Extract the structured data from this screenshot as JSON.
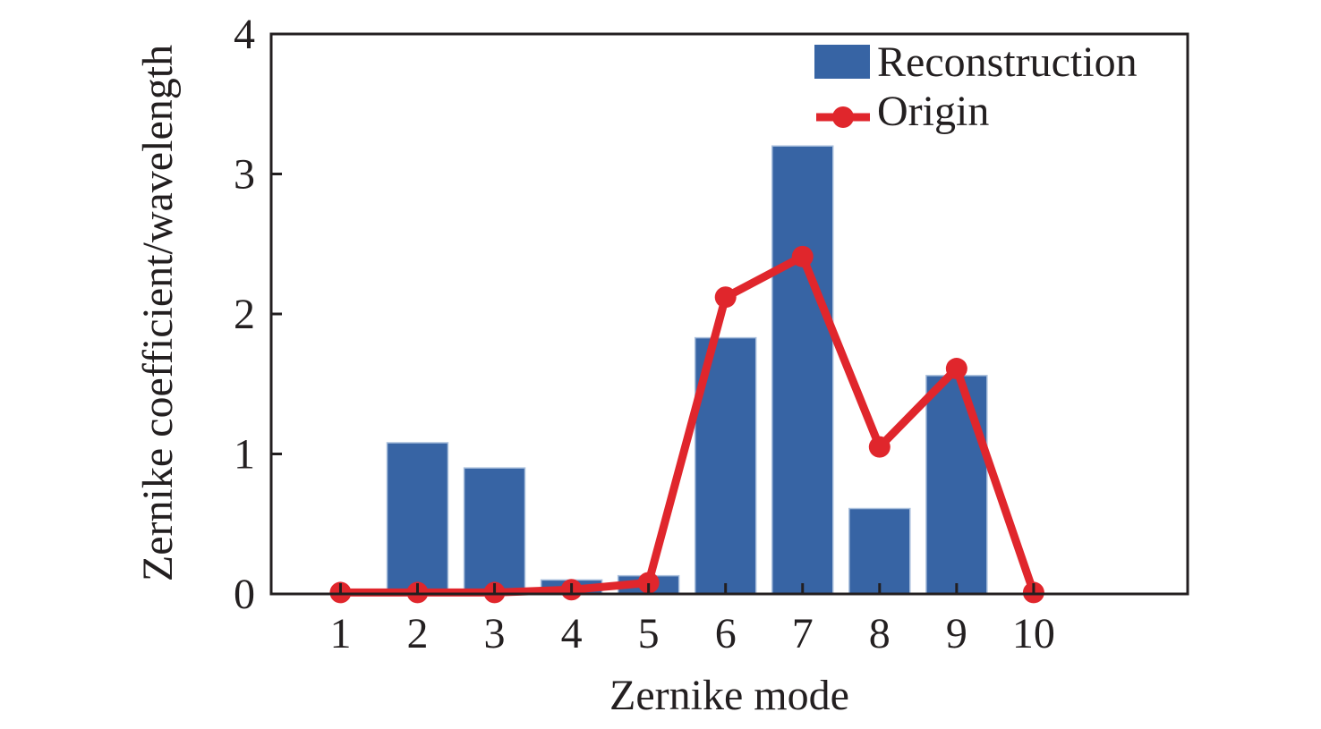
{
  "chart_data": {
    "type": "bar",
    "title": "",
    "xlabel": "Zernike mode",
    "ylabel": "Zernike coefficient/wavelength",
    "x": [
      1,
      2,
      3,
      4,
      5,
      6,
      7,
      8,
      9,
      10
    ],
    "x_tick_labels": [
      "1",
      "2",
      "3",
      "4",
      "5",
      "6",
      "7",
      "8",
      "9",
      "10"
    ],
    "y_tick_labels": [
      "0",
      "1",
      "2",
      "3",
      "4"
    ],
    "xlim": [
      0.1,
      12
    ],
    "ylim": [
      0,
      4
    ],
    "grid": false,
    "legend_position": "top-right",
    "series": [
      {
        "name": "Reconstruction",
        "kind": "bar",
        "color": "#3764a4",
        "values": [
          0.0,
          1.08,
          0.9,
          0.1,
          0.13,
          1.83,
          3.2,
          0.61,
          1.56,
          0.0
        ]
      },
      {
        "name": "Origin",
        "kind": "line",
        "color": "#e0262c",
        "values": [
          0.01,
          0.01,
          0.01,
          0.03,
          0.08,
          2.12,
          2.41,
          1.05,
          1.61,
          0.01
        ]
      }
    ]
  }
}
